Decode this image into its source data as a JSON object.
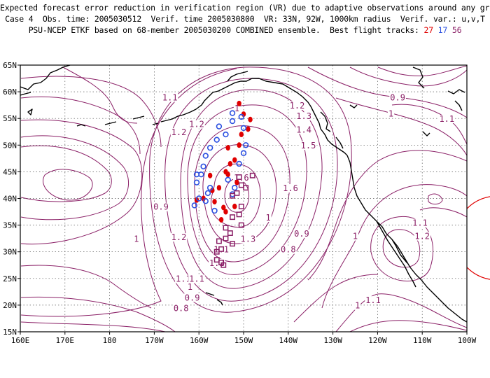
{
  "header": {
    "line1": "Expected forecast error reduction in verification region (VR) due to adaptive observations around any grid point.",
    "line2": "Case 4  Obs. time: 2005030512  Verif. time 2005030800  VR: 33N, 92W, 1000km radius  Verif. var.: u,v,T",
    "line3_prefix": "PSU-NCEP ETKF based on 68-member 2005030200 COMBINED ensemble.  Best flight tracks: ",
    "track_a": "27",
    "track_b": "17",
    "track_c": "56"
  },
  "map": {
    "lat_labels": [
      "65N",
      "60N",
      "55N",
      "50N",
      "45N",
      "40N",
      "35N",
      "30N",
      "25N",
      "20N",
      "15N"
    ],
    "lon_labels": [
      "160E",
      "170E",
      "180",
      "170W",
      "160W",
      "150W",
      "140W",
      "130W",
      "120W",
      "110W",
      "100W"
    ],
    "lat_range": [
      15,
      65
    ],
    "lon_range": [
      160,
      260
    ],
    "colors": {
      "contour": "#8a1f66",
      "coast": "#000000",
      "grid": "#555555",
      "track_27": "#e00000",
      "track_17": "#2a4fe0",
      "track_56": "#8a1f66",
      "vr_circle": "#e00000"
    },
    "contour_labels": [
      {
        "text": "1.1",
        "lon": 163.5,
        "lat": 24.5
      },
      {
        "text": "1.2",
        "lon": 164.5,
        "lat": 32.3
      },
      {
        "text": "1",
        "lon": 174.0,
        "lat": 32.0
      },
      {
        "text": "0.9",
        "lon": 168.5,
        "lat": 38.0
      },
      {
        "text": "1.1",
        "lon": 166.5,
        "lat": 58.5
      },
      {
        "text": "1.2",
        "lon": 164.5,
        "lat": 52.0
      },
      {
        "text": "1.2",
        "lon": 160.5,
        "lat": 53.5
      },
      {
        "text": "1",
        "lon": 151.5,
        "lat": 56.5
      },
      {
        "text": "1.2",
        "lon": 138.0,
        "lat": 57.0
      },
      {
        "text": "1.3",
        "lon": 136.5,
        "lat": 55.0
      },
      {
        "text": "1.4",
        "lon": 136.5,
        "lat": 52.5
      },
      {
        "text": "1.5",
        "lon": 135.5,
        "lat": 49.5
      },
      {
        "text": "1.6",
        "lon": 139.5,
        "lat": 41.5
      },
      {
        "text": "1.6",
        "lon": 150.5,
        "lat": 43.5
      },
      {
        "text": "1",
        "lon": 144.5,
        "lat": 36.0
      },
      {
        "text": "0.9",
        "lon": 137.0,
        "lat": 33.0
      },
      {
        "text": "0.8",
        "lon": 140.0,
        "lat": 30.0
      },
      {
        "text": "1.1",
        "lon": 155.0,
        "lat": 30.0
      },
      {
        "text": "1.3",
        "lon": 149.0,
        "lat": 32.0
      },
      {
        "text": "1.2",
        "lon": 156.0,
        "lat": 27.5
      },
      {
        "text": "1.1",
        "lon": 160.5,
        "lat": 24.5
      },
      {
        "text": "1",
        "lon": 162.0,
        "lat": 23.0
      },
      {
        "text": "0.9",
        "lon": 161.5,
        "lat": 21.0
      },
      {
        "text": "0.8",
        "lon": 164.0,
        "lat": 19.0
      },
      {
        "text": "0.9",
        "lon": 115.5,
        "lat": 58.5
      },
      {
        "text": "1",
        "lon": 117.0,
        "lat": 55.5
      },
      {
        "text": "1.1",
        "lon": 104.5,
        "lat": 54.5
      },
      {
        "text": "1.1",
        "lon": 110.5,
        "lat": 35.0
      },
      {
        "text": "1.2",
        "lon": 110.0,
        "lat": 32.5
      },
      {
        "text": "1",
        "lon": 125.0,
        "lat": 32.5
      },
      {
        "text": "1.1",
        "lon": 121.0,
        "lat": 20.5
      },
      {
        "text": "1",
        "lon": 124.5,
        "lat": 19.5
      }
    ],
    "tracks": {
      "red_dots": [
        [
          151.0,
          57.8
        ],
        [
          150.0,
          55.8
        ],
        [
          148.5,
          54.8
        ],
        [
          149.0,
          53.0
        ],
        [
          150.5,
          52.0
        ],
        [
          151.0,
          50.0
        ],
        [
          153.5,
          49.5
        ],
        [
          152.0,
          47.2
        ],
        [
          153.0,
          46.5
        ],
        [
          154.0,
          45.0
        ],
        [
          157.5,
          44.3
        ],
        [
          153.5,
          44.5
        ],
        [
          151.5,
          43.0
        ],
        [
          155.5,
          42.0
        ],
        [
          157.0,
          41.5
        ],
        [
          159.0,
          40.0
        ],
        [
          160.5,
          39.7
        ],
        [
          156.5,
          39.4
        ],
        [
          152.0,
          38.5
        ],
        [
          154.5,
          38.3
        ],
        [
          154.0,
          37.5
        ],
        [
          155.0,
          36.0
        ]
      ],
      "blue_circles": [
        [
          152.5,
          56.0
        ],
        [
          150.5,
          55.3
        ],
        [
          152.5,
          54.5
        ],
        [
          155.5,
          53.5
        ],
        [
          150.0,
          53.2
        ],
        [
          154.0,
          52.0
        ],
        [
          156.0,
          51.0
        ],
        [
          149.5,
          50.0
        ],
        [
          157.5,
          49.5
        ],
        [
          150.0,
          48.5
        ],
        [
          158.5,
          48.0
        ],
        [
          151.0,
          46.5
        ],
        [
          159.0,
          46.0
        ],
        [
          159.5,
          44.5
        ],
        [
          153.5,
          43.5
        ],
        [
          160.5,
          44.5
        ],
        [
          160.5,
          43.0
        ],
        [
          152.0,
          42.0
        ],
        [
          157.5,
          42.0
        ],
        [
          158.0,
          41.0
        ],
        [
          152.5,
          40.8
        ],
        [
          158.5,
          39.5
        ],
        [
          161.0,
          38.7
        ],
        [
          160.0,
          40.0
        ],
        [
          156.5,
          37.7
        ]
      ],
      "purple_squares": [
        [
          148.0,
          44.3
        ],
        [
          151.0,
          44.0
        ],
        [
          150.5,
          42.5
        ],
        [
          151.5,
          41.0
        ],
        [
          152.5,
          40.5
        ],
        [
          150.5,
          38.5
        ],
        [
          151.0,
          37.0
        ],
        [
          152.5,
          36.5
        ],
        [
          150.5,
          35.0
        ],
        [
          154.0,
          34.5
        ],
        [
          153.0,
          33.5
        ],
        [
          154.0,
          32.5
        ],
        [
          155.5,
          32.0
        ],
        [
          152.5,
          31.5
        ],
        [
          155.0,
          30.5
        ],
        [
          156.0,
          28.5
        ],
        [
          155.0,
          28.0
        ],
        [
          154.5,
          27.5
        ],
        [
          149.5,
          42.0
        ],
        [
          156.0,
          30.0
        ]
      ]
    }
  }
}
